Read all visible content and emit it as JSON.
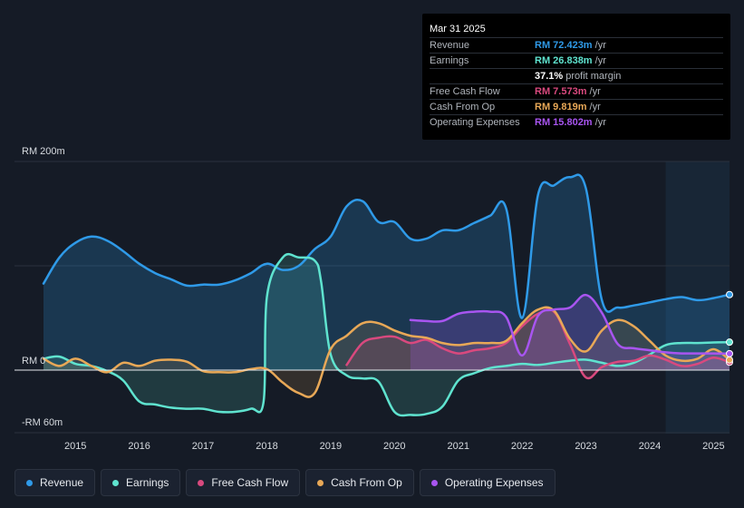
{
  "tooltip": {
    "date": "Mar 31 2025",
    "rows": [
      {
        "label": "Revenue",
        "value": "RM 72.423m",
        "unit": " /yr",
        "color": "#2f9ae8"
      },
      {
        "label": "Earnings",
        "value": "RM 26.838m",
        "unit": " /yr",
        "color": "#5fe3cf"
      },
      {
        "label": "",
        "value": "37.1%",
        "unit": " profit margin",
        "color": "#ffffff"
      },
      {
        "label": "Free Cash Flow",
        "value": "RM 7.573m",
        "unit": " /yr",
        "color": "#d9497e"
      },
      {
        "label": "Cash From Op",
        "value": "RM 9.819m",
        "unit": " /yr",
        "color": "#e8a857"
      },
      {
        "label": "Operating Expenses",
        "value": "RM 15.802m",
        "unit": " /yr",
        "color": "#a855f0"
      }
    ]
  },
  "legend": [
    {
      "label": "Revenue",
      "color": "#2f9ae8"
    },
    {
      "label": "Earnings",
      "color": "#5fe3cf"
    },
    {
      "label": "Free Cash Flow",
      "color": "#d9497e"
    },
    {
      "label": "Cash From Op",
      "color": "#e8a857"
    },
    {
      "label": "Operating Expenses",
      "color": "#a855f0"
    }
  ],
  "chart_data": {
    "type": "area",
    "title": "",
    "xlabel": "",
    "ylabel": "",
    "y_unit": "RM m",
    "ylim": [
      -60,
      200
    ],
    "y_tick_labels": [
      {
        "value": 200,
        "label": "RM 200m"
      },
      {
        "value": 0,
        "label": "RM 0"
      },
      {
        "value": -60,
        "label": "-RM 60m"
      }
    ],
    "xlim": [
      2014.5,
      2025.25
    ],
    "x_ticks": [
      "2015",
      "2016",
      "2017",
      "2018",
      "2019",
      "2020",
      "2021",
      "2022",
      "2023",
      "2024",
      "2025"
    ],
    "forecast_shade_start": 2024.25,
    "series": [
      {
        "name": "Revenue",
        "color": "#2f9ae8",
        "points": [
          [
            2014.5,
            83
          ],
          [
            2014.75,
            108
          ],
          [
            2015.0,
            122
          ],
          [
            2015.25,
            128
          ],
          [
            2015.5,
            124
          ],
          [
            2015.75,
            114
          ],
          [
            2016.0,
            102
          ],
          [
            2016.25,
            93
          ],
          [
            2016.5,
            87
          ],
          [
            2016.75,
            81
          ],
          [
            2017.0,
            82
          ],
          [
            2017.25,
            82
          ],
          [
            2017.5,
            86
          ],
          [
            2017.75,
            93
          ],
          [
            2018.0,
            102
          ],
          [
            2018.25,
            96
          ],
          [
            2018.5,
            100
          ],
          [
            2018.75,
            116
          ],
          [
            2019.0,
            128
          ],
          [
            2019.25,
            157
          ],
          [
            2019.5,
            162
          ],
          [
            2019.75,
            142
          ],
          [
            2020.0,
            142
          ],
          [
            2020.25,
            126
          ],
          [
            2020.5,
            126
          ],
          [
            2020.75,
            134
          ],
          [
            2021.0,
            134
          ],
          [
            2021.25,
            141
          ],
          [
            2021.5,
            148
          ],
          [
            2021.75,
            155
          ],
          [
            2022.0,
            50
          ],
          [
            2022.25,
            168
          ],
          [
            2022.5,
            177
          ],
          [
            2022.75,
            185
          ],
          [
            2023.0,
            174
          ],
          [
            2023.25,
            67
          ],
          [
            2023.5,
            60
          ],
          [
            2023.75,
            62
          ],
          [
            2024.0,
            65
          ],
          [
            2024.25,
            68
          ],
          [
            2024.5,
            70
          ],
          [
            2024.75,
            67
          ],
          [
            2025.0,
            69
          ],
          [
            2025.25,
            72.4
          ]
        ]
      },
      {
        "name": "Earnings",
        "color": "#5fe3cf",
        "points": [
          [
            2014.5,
            11
          ],
          [
            2014.75,
            13
          ],
          [
            2015.0,
            6
          ],
          [
            2015.25,
            4
          ],
          [
            2015.5,
            -1
          ],
          [
            2015.75,
            -10
          ],
          [
            2016.0,
            -30
          ],
          [
            2016.25,
            -33
          ],
          [
            2016.5,
            -36
          ],
          [
            2016.75,
            -37
          ],
          [
            2017.0,
            -37
          ],
          [
            2017.25,
            -40
          ],
          [
            2017.5,
            -40
          ],
          [
            2017.75,
            -37
          ],
          [
            2017.95,
            -30
          ],
          [
            2018.0,
            70
          ],
          [
            2018.25,
            108
          ],
          [
            2018.5,
            108
          ],
          [
            2018.75,
            105
          ],
          [
            2018.85,
            85
          ],
          [
            2019.0,
            15
          ],
          [
            2019.25,
            -5
          ],
          [
            2019.5,
            -8
          ],
          [
            2019.75,
            -11
          ],
          [
            2020.0,
            -40
          ],
          [
            2020.25,
            -43
          ],
          [
            2020.5,
            -42
          ],
          [
            2020.75,
            -35
          ],
          [
            2021.0,
            -10
          ],
          [
            2021.25,
            -3
          ],
          [
            2021.5,
            2
          ],
          [
            2021.75,
            4
          ],
          [
            2022.0,
            6
          ],
          [
            2022.25,
            5
          ],
          [
            2022.5,
            7
          ],
          [
            2022.75,
            9
          ],
          [
            2023.0,
            10
          ],
          [
            2023.25,
            7
          ],
          [
            2023.5,
            4
          ],
          [
            2023.75,
            7
          ],
          [
            2024.0,
            15
          ],
          [
            2024.25,
            24
          ],
          [
            2024.5,
            26
          ],
          [
            2024.75,
            26
          ],
          [
            2025.0,
            26.5
          ],
          [
            2025.25,
            26.8
          ]
        ]
      },
      {
        "name": "Free Cash Flow",
        "color": "#d9497e",
        "points": [
          [
            2019.25,
            5
          ],
          [
            2019.5,
            26
          ],
          [
            2019.75,
            31
          ],
          [
            2020.0,
            32
          ],
          [
            2020.25,
            26
          ],
          [
            2020.5,
            29
          ],
          [
            2020.75,
            21
          ],
          [
            2021.0,
            16
          ],
          [
            2021.25,
            19
          ],
          [
            2021.5,
            21
          ],
          [
            2021.75,
            26
          ],
          [
            2022.0,
            42
          ],
          [
            2022.25,
            54
          ],
          [
            2022.5,
            56
          ],
          [
            2022.75,
            25
          ],
          [
            2023.0,
            -7
          ],
          [
            2023.25,
            3
          ],
          [
            2023.5,
            8
          ],
          [
            2023.75,
            9
          ],
          [
            2024.0,
            14
          ],
          [
            2024.25,
            10
          ],
          [
            2024.5,
            4
          ],
          [
            2024.75,
            6
          ],
          [
            2025.0,
            12
          ],
          [
            2025.25,
            7.6
          ]
        ]
      },
      {
        "name": "Cash From Op",
        "color": "#e8a857",
        "points": [
          [
            2014.5,
            11
          ],
          [
            2014.75,
            4
          ],
          [
            2015.0,
            11
          ],
          [
            2015.25,
            4
          ],
          [
            2015.5,
            -2
          ],
          [
            2015.75,
            7
          ],
          [
            2016.0,
            4
          ],
          [
            2016.25,
            9
          ],
          [
            2016.5,
            10
          ],
          [
            2016.75,
            8
          ],
          [
            2017.0,
            -1
          ],
          [
            2017.25,
            -2
          ],
          [
            2017.5,
            -2
          ],
          [
            2017.75,
            1
          ],
          [
            2018.0,
            1
          ],
          [
            2018.25,
            -12
          ],
          [
            2018.5,
            -22
          ],
          [
            2018.75,
            -22
          ],
          [
            2019.0,
            20
          ],
          [
            2019.25,
            33
          ],
          [
            2019.5,
            45
          ],
          [
            2019.75,
            45
          ],
          [
            2020.0,
            38
          ],
          [
            2020.25,
            33
          ],
          [
            2020.5,
            31
          ],
          [
            2020.75,
            26
          ],
          [
            2021.0,
            24
          ],
          [
            2021.25,
            26
          ],
          [
            2021.5,
            26
          ],
          [
            2021.75,
            28
          ],
          [
            2022.0,
            45
          ],
          [
            2022.25,
            58
          ],
          [
            2022.5,
            57
          ],
          [
            2022.75,
            30
          ],
          [
            2023.0,
            18
          ],
          [
            2023.25,
            38
          ],
          [
            2023.5,
            48
          ],
          [
            2023.75,
            42
          ],
          [
            2024.0,
            28
          ],
          [
            2024.25,
            14
          ],
          [
            2024.5,
            9
          ],
          [
            2024.75,
            11
          ],
          [
            2025.0,
            20
          ],
          [
            2025.25,
            9.8
          ]
        ]
      },
      {
        "name": "Operating Expenses",
        "color": "#a855f0",
        "points": [
          [
            2020.25,
            48
          ],
          [
            2020.5,
            47
          ],
          [
            2020.75,
            47
          ],
          [
            2021.0,
            54
          ],
          [
            2021.25,
            56
          ],
          [
            2021.5,
            56
          ],
          [
            2021.75,
            51
          ],
          [
            2022.0,
            14
          ],
          [
            2022.25,
            52
          ],
          [
            2022.5,
            58
          ],
          [
            2022.75,
            60
          ],
          [
            2023.0,
            72
          ],
          [
            2023.25,
            55
          ],
          [
            2023.5,
            25
          ],
          [
            2023.75,
            21
          ],
          [
            2024.0,
            19
          ],
          [
            2024.25,
            17
          ],
          [
            2024.5,
            16
          ],
          [
            2024.75,
            16
          ],
          [
            2025.0,
            16
          ],
          [
            2025.25,
            15.8
          ]
        ]
      }
    ]
  }
}
